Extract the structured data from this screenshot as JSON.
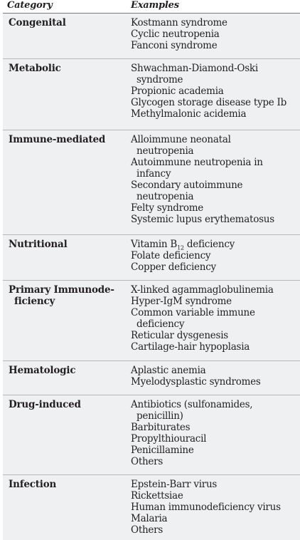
{
  "header": {
    "category_label": "Category",
    "examples_label": "Examples"
  },
  "rows": [
    {
      "category": [
        "Congenital"
      ],
      "examples": [
        [
          "Kostmann syndrome"
        ],
        [
          "Cyclic neutropenia"
        ],
        [
          "Fanconi syndrome"
        ]
      ]
    },
    {
      "category": [
        "Metabolic"
      ],
      "examples": [
        [
          "Shwachman-Diamond-Oski",
          "syndrome"
        ],
        [
          "Propionic academia"
        ],
        [
          "Glycogen storage disease type Ib"
        ],
        [
          "Methylmalonic acidemia"
        ]
      ]
    },
    {
      "category": [
        "Immune-mediated"
      ],
      "examples": [
        [
          "Alloimmune neonatal",
          "neutropenia"
        ],
        [
          "Autoimmune neutropenia in",
          "infancy"
        ],
        [
          "Secondary autoimmune",
          "neutropenia"
        ],
        [
          "Felty syndrome"
        ],
        [
          "Systemic lupus erythematosus"
        ]
      ]
    },
    {
      "category": [
        "Nutritional"
      ],
      "examples": [
        [
          "Vitamin B12 deficiency"
        ],
        [
          "Folate deficiency"
        ],
        [
          "Copper deficiency"
        ]
      ]
    },
    {
      "category": [
        "Primary Immunode-",
        "ficiency"
      ],
      "examples": [
        [
          "X-linked agammaglobulinemia"
        ],
        [
          "Hyper-IgM syndrome"
        ],
        [
          "Common variable immune",
          "deficiency"
        ],
        [
          "Reticular dysgenesis"
        ],
        [
          "Cartilage-hair hypoplasia"
        ]
      ]
    },
    {
      "category": [
        "Hematologic"
      ],
      "examples": [
        [
          "Aplastic anemia"
        ],
        [
          "Myelodysplastic syndromes"
        ]
      ]
    },
    {
      "category": [
        "Drug-induced"
      ],
      "examples": [
        [
          "Antibiotics (sulfonamides,",
          "penicillin)"
        ],
        [
          "Barbiturates"
        ],
        [
          "Propylthiouracil"
        ],
        [
          "Penicillamine"
        ],
        [
          "Others"
        ]
      ]
    },
    {
      "category": [
        "Infection"
      ],
      "examples": [
        [
          "Epstein-Barr virus"
        ],
        [
          "Rickettsiae"
        ],
        [
          "Human immunodeficiency virus"
        ],
        [
          "Malaria"
        ],
        [
          "Others"
        ]
      ]
    }
  ],
  "colors": {
    "row_background": "#eef0f1",
    "text": "#231f20",
    "rule": "#b8b8b8"
  }
}
